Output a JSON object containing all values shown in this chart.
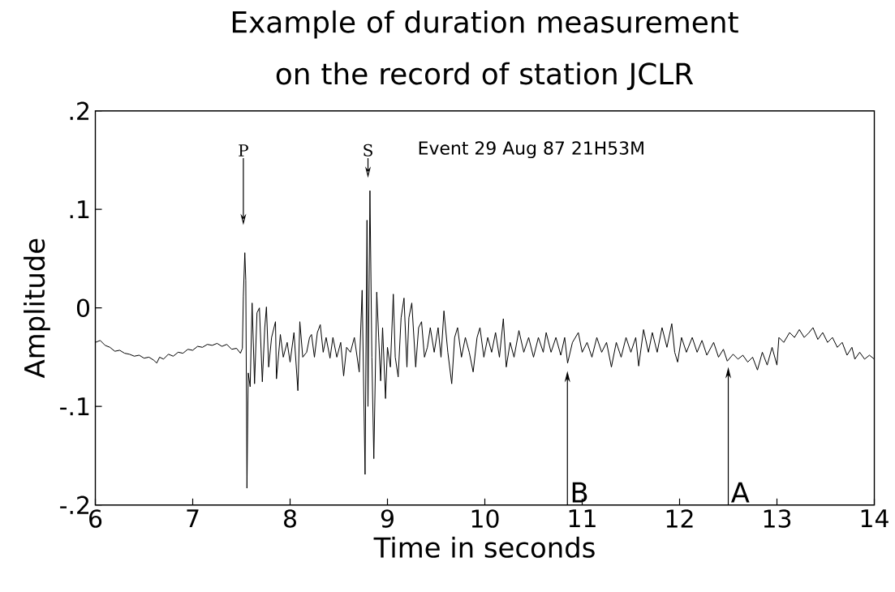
{
  "chart_data": {
    "type": "line",
    "title": "Example of duration measurement\non the record of station JCLR",
    "xlabel": "Time in seconds",
    "ylabel": "Amplitude",
    "xlim": [
      6,
      14
    ],
    "ylim": [
      -0.2,
      0.2
    ],
    "xticks": [
      6,
      7,
      8,
      9,
      10,
      11,
      12,
      13,
      14
    ],
    "yticks": [
      {
        "value": -0.2,
        "label": "-.2"
      },
      {
        "value": -0.1,
        "label": "-.1"
      },
      {
        "value": 0,
        "label": "0"
      },
      {
        "value": 0.1,
        "label": ".1"
      },
      {
        "value": 0.2,
        "label": ".2"
      }
    ],
    "grid": false,
    "marker": "none",
    "line_style": "solid",
    "annotations": [
      "P",
      "S",
      "Event 29 Aug 87 21H53M",
      "B",
      "A"
    ],
    "series": [
      {
        "color": "#000000",
        "x": [
          6.0,
          6.05,
          6.1,
          6.15,
          6.2,
          6.25,
          6.3,
          6.35,
          6.4,
          6.45,
          6.5,
          6.55,
          6.6,
          6.63,
          6.66,
          6.7,
          6.75,
          6.8,
          6.85,
          6.9,
          6.95,
          7.0,
          7.05,
          7.1,
          7.15,
          7.2,
          7.25,
          7.3,
          7.35,
          7.4,
          7.45,
          7.49,
          7.51,
          7.52,
          7.535,
          7.545,
          7.557,
          7.57,
          7.59,
          7.61,
          7.635,
          7.66,
          7.685,
          7.715,
          7.74,
          7.757,
          7.78,
          7.81,
          7.85,
          7.86,
          7.9,
          7.93,
          7.97,
          8.0,
          8.04,
          8.08,
          8.1,
          8.13,
          8.17,
          8.2,
          8.22,
          8.25,
          8.28,
          8.31,
          8.34,
          8.37,
          8.41,
          8.44,
          8.48,
          8.52,
          8.55,
          8.58,
          8.62,
          8.66,
          8.71,
          8.74,
          8.77,
          8.79,
          8.8,
          8.82,
          8.84,
          8.86,
          8.89,
          8.91,
          8.93,
          8.95,
          8.98,
          9.0,
          9.03,
          9.06,
          9.08,
          9.11,
          9.14,
          9.17,
          9.2,
          9.22,
          9.25,
          9.29,
          9.32,
          9.35,
          9.38,
          9.41,
          9.44,
          9.48,
          9.52,
          9.55,
          9.58,
          9.62,
          9.66,
          9.69,
          9.72,
          9.76,
          9.8,
          9.84,
          9.88,
          9.92,
          9.95,
          9.99,
          10.03,
          10.07,
          10.11,
          10.15,
          10.19,
          10.22,
          10.26,
          10.3,
          10.35,
          10.4,
          10.45,
          10.5,
          10.55,
          10.6,
          10.63,
          10.68,
          10.73,
          10.78,
          10.82,
          10.85,
          10.9,
          10.96,
          11.0,
          11.05,
          11.1,
          11.15,
          11.2,
          11.25,
          11.3,
          11.35,
          11.4,
          11.45,
          11.5,
          11.55,
          11.58,
          11.63,
          11.68,
          11.72,
          11.77,
          11.82,
          11.87,
          11.92,
          11.95,
          11.98,
          12.02,
          12.07,
          12.13,
          12.18,
          12.23,
          12.28,
          12.35,
          12.4,
          12.45,
          12.49,
          12.55,
          12.6,
          12.65,
          12.7,
          12.75,
          12.8,
          12.85,
          12.9,
          12.95,
          13.0,
          13.02,
          13.07,
          13.13,
          13.18,
          13.23,
          13.28,
          13.33,
          13.37,
          13.42,
          13.47,
          13.52,
          13.57,
          13.62,
          13.67,
          13.72,
          13.77,
          13.8,
          13.85,
          13.9,
          13.95,
          14.0
        ],
        "values": [
          -0.035,
          -0.033,
          -0.038,
          -0.04,
          -0.044,
          -0.043,
          -0.046,
          -0.047,
          -0.049,
          -0.048,
          -0.051,
          -0.05,
          -0.053,
          -0.056,
          -0.05,
          -0.052,
          -0.047,
          -0.049,
          -0.045,
          -0.046,
          -0.042,
          -0.043,
          -0.039,
          -0.04,
          -0.037,
          -0.038,
          -0.036,
          -0.039,
          -0.037,
          -0.042,
          -0.041,
          -0.046,
          -0.041,
          0.012,
          0.056,
          0.028,
          -0.183,
          -0.066,
          -0.08,
          0.005,
          -0.077,
          -0.005,
          0.0,
          -0.075,
          -0.02,
          0.001,
          -0.06,
          -0.03,
          -0.014,
          -0.072,
          -0.027,
          -0.05,
          -0.035,
          -0.055,
          -0.025,
          -0.084,
          -0.014,
          -0.05,
          -0.045,
          -0.03,
          -0.027,
          -0.05,
          -0.025,
          -0.017,
          -0.045,
          -0.03,
          -0.051,
          -0.03,
          -0.05,
          -0.035,
          -0.069,
          -0.04,
          -0.045,
          -0.03,
          -0.065,
          0.018,
          -0.169,
          0.089,
          -0.1,
          0.119,
          -0.05,
          -0.153,
          0.016,
          -0.03,
          -0.074,
          -0.02,
          -0.092,
          -0.04,
          -0.06,
          0.014,
          -0.05,
          -0.07,
          -0.01,
          0.01,
          -0.06,
          -0.01,
          0.005,
          -0.06,
          -0.02,
          -0.014,
          -0.05,
          -0.04,
          -0.02,
          -0.045,
          -0.02,
          -0.05,
          -0.003,
          -0.045,
          -0.077,
          -0.03,
          -0.02,
          -0.05,
          -0.03,
          -0.045,
          -0.065,
          -0.03,
          -0.02,
          -0.05,
          -0.03,
          -0.045,
          -0.025,
          -0.05,
          -0.011,
          -0.06,
          -0.035,
          -0.05,
          -0.023,
          -0.045,
          -0.03,
          -0.05,
          -0.03,
          -0.045,
          -0.025,
          -0.045,
          -0.03,
          -0.048,
          -0.03,
          -0.056,
          -0.035,
          -0.025,
          -0.045,
          -0.035,
          -0.05,
          -0.03,
          -0.045,
          -0.035,
          -0.06,
          -0.035,
          -0.05,
          -0.03,
          -0.045,
          -0.03,
          -0.059,
          -0.022,
          -0.045,
          -0.025,
          -0.045,
          -0.02,
          -0.04,
          -0.016,
          -0.045,
          -0.055,
          -0.03,
          -0.045,
          -0.03,
          -0.045,
          -0.033,
          -0.048,
          -0.035,
          -0.05,
          -0.042,
          -0.054,
          -0.047,
          -0.052,
          -0.048,
          -0.055,
          -0.05,
          -0.063,
          -0.045,
          -0.058,
          -0.04,
          -0.058,
          -0.03,
          -0.035,
          -0.025,
          -0.03,
          -0.022,
          -0.03,
          -0.025,
          -0.02,
          -0.032,
          -0.025,
          -0.035,
          -0.03,
          -0.04,
          -0.035,
          -0.048,
          -0.04,
          -0.052,
          -0.045,
          -0.052,
          -0.048,
          -0.052
        ]
      }
    ]
  }
}
